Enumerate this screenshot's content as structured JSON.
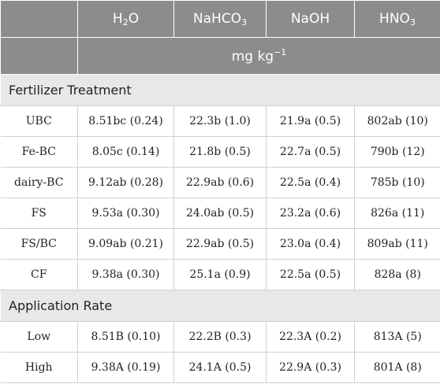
{
  "columns": [
    {
      "base": "",
      "sub": ""
    },
    {
      "base": "H",
      "sub": "2",
      "tail": "O"
    },
    {
      "base": "NaHCO",
      "sub": "3",
      "tail": ""
    },
    {
      "base": "NaOH",
      "sub": "",
      "tail": ""
    },
    {
      "base": "HNO",
      "sub": "3",
      "tail": ""
    }
  ],
  "unit": {
    "base": "mg kg",
    "sup": "−1"
  },
  "sections": [
    {
      "title": "Fertilizer Treatment",
      "rows": [
        [
          "UBC",
          "8.51bc (0.24)",
          "22.3b (1.0)",
          "21.9a (0.5)",
          "802ab (10)"
        ],
        [
          "Fe-BC",
          "8.05c (0.14)",
          "21.8b (0.5)",
          "22.7a (0.5)",
          "790b (12)"
        ],
        [
          "dairy-BC",
          "9.12ab (0.28)",
          "22.9ab (0.6)",
          "22.5a (0.4)",
          "785b (10)"
        ],
        [
          "FS",
          "9.53a (0.30)",
          "24.0ab (0.5)",
          "23.2a (0.6)",
          "826a (11)"
        ],
        [
          "FS/BC",
          "9.09ab (0.21)",
          "22.9ab (0.5)",
          "23.0a (0.4)",
          "809ab (11)"
        ],
        [
          "CF",
          "9.38a (0.30)",
          "25.1a (0.9)",
          "22.5a (0.5)",
          "828a (8)"
        ]
      ]
    },
    {
      "title": "Application Rate",
      "rows": [
        [
          "Low",
          "8.51B (0.10)",
          "22.2B (0.3)",
          "22.3A (0.2)",
          "813A (5)"
        ],
        [
          "High",
          "9.38A (0.19)",
          "24.1A (0.5)",
          "22.9A (0.3)",
          "801A (8)"
        ]
      ]
    }
  ]
}
